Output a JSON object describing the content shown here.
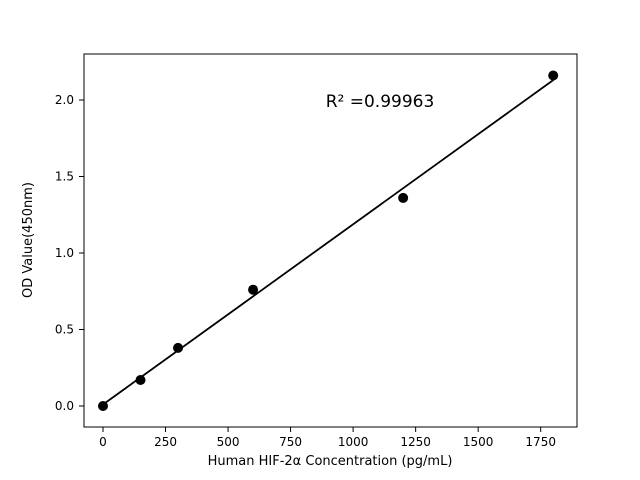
{
  "figure": {
    "background_color": "#ffffff",
    "foreground_color": "#000000"
  },
  "chart_data": {
    "type": "scatter",
    "title": "",
    "xlabel": "Human HIF-2α Concentration (pg/mL)",
    "ylabel": "OD Value(450nm)",
    "annotation": "R² =0.99963",
    "r_squared": 0.99963,
    "series": [
      {
        "name": "standards",
        "marker": "circle",
        "color": "#000000",
        "x": [
          0,
          150,
          300,
          600,
          1200,
          1800
        ],
        "y": [
          0.0,
          0.17,
          0.38,
          0.76,
          1.36,
          2.16
        ]
      }
    ],
    "fit_line": {
      "name": "linear-fit",
      "color": "#000000",
      "x": [
        0,
        1800
      ],
      "y": [
        0.01,
        2.13
      ]
    },
    "xticks": [
      0,
      250,
      500,
      750,
      1000,
      1250,
      1500,
      1750
    ],
    "xtick_labels": [
      "0",
      "250",
      "500",
      "750",
      "1000",
      "1250",
      "1500",
      "1750"
    ],
    "yticks": [
      0.0,
      0.5,
      1.0,
      1.5,
      2.0
    ],
    "ytick_labels": [
      "0.0",
      "0.5",
      "1.0",
      "1.5",
      "2.0"
    ],
    "xlim": [
      -76,
      1895
    ],
    "ylim": [
      -0.14,
      2.3
    ],
    "grid": false,
    "legend": null
  }
}
